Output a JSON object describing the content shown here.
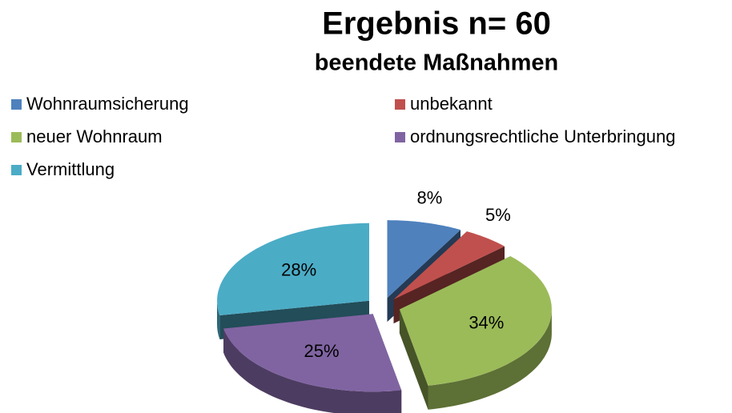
{
  "chart_data": {
    "type": "pie",
    "title": "Ergebnis n= 60",
    "subtitle": "beendete Maßnahmen",
    "categories": [
      "Wohnraumsicherung",
      "unbekannt",
      "neuer Wohnraum",
      "ordnungsrechtliche Unterbringung",
      "Vermittlung"
    ],
    "values": [
      8,
      5,
      34,
      25,
      28
    ],
    "value_labels": [
      "8%",
      "5%",
      "34%",
      "25%",
      "28%"
    ],
    "colors": [
      "#4f81bd",
      "#c0504d",
      "#9bbb59",
      "#8064a2",
      "#4bacc6"
    ],
    "legend": "top"
  }
}
